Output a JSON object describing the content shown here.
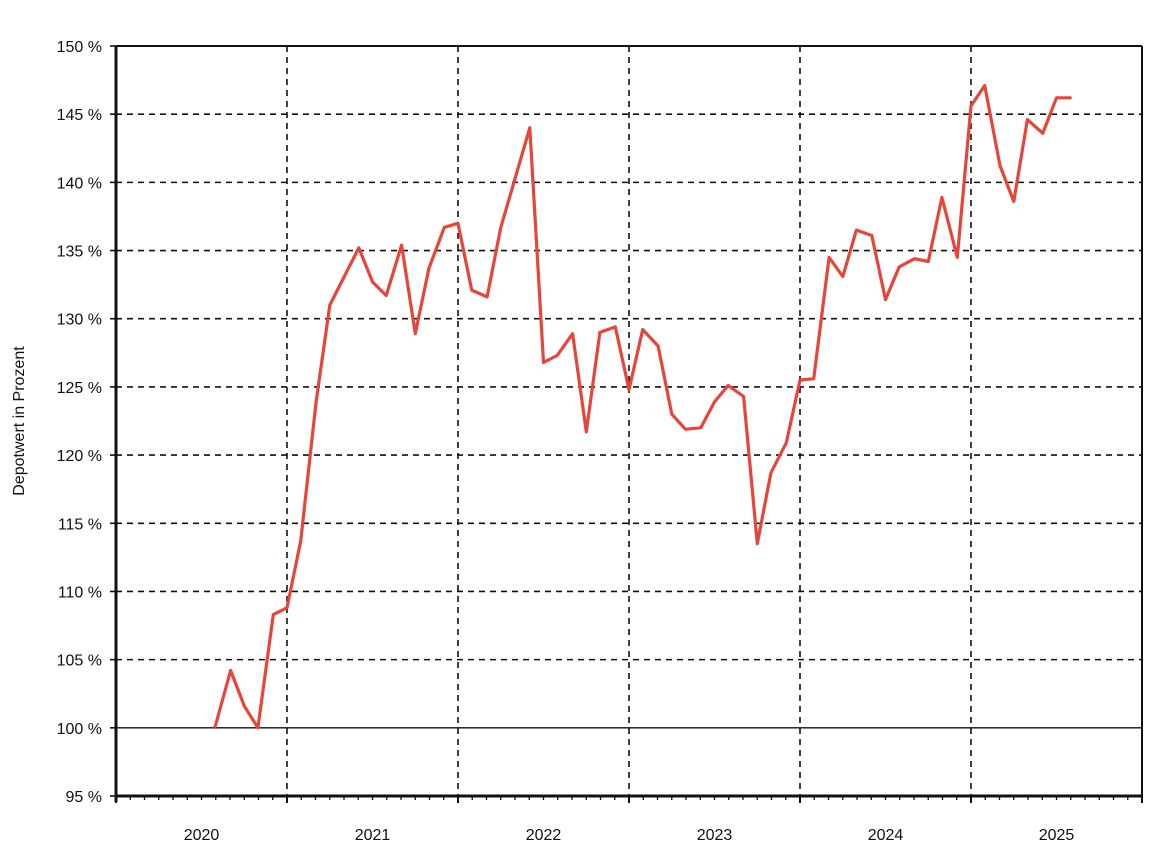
{
  "chart_data": {
    "type": "line",
    "title": "",
    "xlabel": "",
    "ylabel": "Depotwert in Prozent",
    "x_categories": [
      "2020",
      "2021",
      "2022",
      "2023",
      "2024",
      "2025"
    ],
    "y_ticks": [
      "95 %",
      "100 %",
      "105 %",
      "110 %",
      "115 %",
      "120 %",
      "125 %",
      "130 %",
      "135 %",
      "140 %",
      "145 %",
      "150 %"
    ],
    "ylim": [
      95,
      150
    ],
    "xlim": [
      2020.0,
      2026.0
    ],
    "grid": true,
    "baseline": 100,
    "line_color": "#e8443a",
    "series": [
      {
        "x": [
          2020.58,
          2020.67,
          2020.75,
          2020.83,
          2020.92,
          2021.0,
          2021.08,
          2021.17,
          2021.25,
          2021.42,
          2021.5,
          2021.58,
          2021.67,
          2021.75,
          2021.83,
          2021.92,
          2022.0,
          2022.08,
          2022.17,
          2022.25,
          2022.42,
          2022.5,
          2022.58,
          2022.67,
          2022.75,
          2022.83,
          2022.92,
          2023.0,
          2023.08,
          2023.17,
          2023.25,
          2023.33,
          2023.42,
          2023.5,
          2023.58,
          2023.67,
          2023.75,
          2023.83,
          2023.92,
          2024.0,
          2024.08,
          2024.17,
          2024.25,
          2024.33,
          2024.42,
          2024.5,
          2024.58,
          2024.67,
          2024.75,
          2024.83,
          2024.92,
          2025.0,
          2025.08,
          2025.17,
          2025.25,
          2025.33,
          2025.42,
          2025.5,
          2025.58
        ],
        "values": [
          100.1,
          104.2,
          101.6,
          100.0,
          108.3,
          108.8,
          113.7,
          123.9,
          131.0,
          135.2,
          132.7,
          131.7,
          135.4,
          128.9,
          133.7,
          136.7,
          137.0,
          132.1,
          131.6,
          136.7,
          144.0,
          126.8,
          127.3,
          128.9,
          121.7,
          129.0,
          129.4,
          124.8,
          129.2,
          128.0,
          123.0,
          121.9,
          122.0,
          123.9,
          125.1,
          124.3,
          113.5,
          118.7,
          120.9,
          125.5,
          125.6,
          134.5,
          133.1,
          136.5,
          136.1,
          131.4,
          133.8,
          134.4,
          134.2,
          138.9,
          134.5,
          145.6,
          147.1,
          141.2,
          138.6,
          144.6,
          143.6,
          146.2,
          146.2
        ]
      }
    ]
  }
}
